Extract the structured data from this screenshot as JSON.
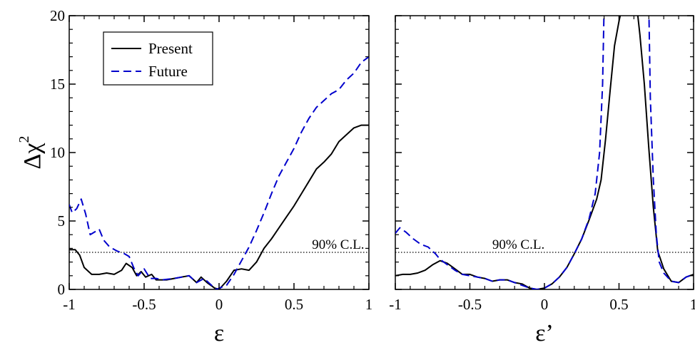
{
  "chart_data": [
    {
      "type": "line",
      "xlabel": "ε",
      "ylabel": "Δχ",
      "ylabel_superscript": "2",
      "xlim": [
        -1,
        1
      ],
      "ylim": [
        0,
        20
      ],
      "x_ticks": [
        -1,
        -0.5,
        0,
        0.5,
        1
      ],
      "x_tick_labels": [
        "-1",
        "-0.5",
        "0",
        "0.5",
        "1"
      ],
      "y_ticks": [
        0,
        5,
        10,
        15,
        20
      ],
      "y_tick_labels": [
        "0",
        "5",
        "10",
        "15",
        "20"
      ],
      "grid": false,
      "legend": {
        "position": "top-left",
        "entries": [
          "Present",
          "Future"
        ]
      },
      "reference_line": {
        "y": 2.71,
        "label": "90% C.L.",
        "label_x": 0.62
      },
      "series": [
        {
          "name": "Present",
          "color": "#000000",
          "dash": "solid",
          "points": [
            [
              -1,
              2.9
            ],
            [
              -0.96,
              2.9
            ],
            [
              -0.93,
              2.5
            ],
            [
              -0.9,
              1.6
            ],
            [
              -0.85,
              1.1
            ],
            [
              -0.8,
              1.1
            ],
            [
              -0.75,
              1.2
            ],
            [
              -0.7,
              1.1
            ],
            [
              -0.65,
              1.4
            ],
            [
              -0.62,
              1.9
            ],
            [
              -0.58,
              1.6
            ],
            [
              -0.55,
              1.0
            ],
            [
              -0.52,
              1.3
            ],
            [
              -0.49,
              0.9
            ],
            [
              -0.45,
              1.1
            ],
            [
              -0.42,
              0.7
            ],
            [
              -0.35,
              0.7
            ],
            [
              -0.3,
              0.8
            ],
            [
              -0.2,
              1.0
            ],
            [
              -0.15,
              0.5
            ],
            [
              -0.12,
              0.9
            ],
            [
              -0.08,
              0.5
            ],
            [
              -0.03,
              0.1
            ],
            [
              0,
              0.0
            ],
            [
              0.05,
              0.6
            ],
            [
              0.1,
              1.4
            ],
            [
              0.15,
              1.5
            ],
            [
              0.2,
              1.4
            ],
            [
              0.25,
              2.0
            ],
            [
              0.3,
              3.0
            ],
            [
              0.35,
              3.7
            ],
            [
              0.4,
              4.5
            ],
            [
              0.45,
              5.3
            ],
            [
              0.5,
              6.1
            ],
            [
              0.55,
              7.0
            ],
            [
              0.6,
              7.9
            ],
            [
              0.65,
              8.8
            ],
            [
              0.7,
              9.3
            ],
            [
              0.75,
              9.9
            ],
            [
              0.8,
              10.8
            ],
            [
              0.85,
              11.3
            ],
            [
              0.9,
              11.8
            ],
            [
              0.95,
              12.0
            ],
            [
              1,
              12.0
            ]
          ]
        },
        {
          "name": "Future",
          "color": "#0000cc",
          "dash": "dashed",
          "points": [
            [
              -1,
              6.2
            ],
            [
              -0.98,
              5.6
            ],
            [
              -0.95,
              5.9
            ],
            [
              -0.92,
              6.6
            ],
            [
              -0.89,
              5.5
            ],
            [
              -0.86,
              4.0
            ],
            [
              -0.83,
              4.2
            ],
            [
              -0.8,
              4.4
            ],
            [
              -0.77,
              3.6
            ],
            [
              -0.73,
              3.1
            ],
            [
              -0.68,
              2.8
            ],
            [
              -0.63,
              2.6
            ],
            [
              -0.6,
              2.4
            ],
            [
              -0.57,
              1.6
            ],
            [
              -0.54,
              1.0
            ],
            [
              -0.5,
              1.5
            ],
            [
              -0.46,
              0.8
            ],
            [
              -0.42,
              0.8
            ],
            [
              -0.38,
              0.7
            ],
            [
              -0.3,
              0.8
            ],
            [
              -0.2,
              1.0
            ],
            [
              -0.15,
              0.5
            ],
            [
              -0.1,
              0.8
            ],
            [
              -0.06,
              0.4
            ],
            [
              -0.02,
              0.0
            ],
            [
              0.05,
              0.3
            ],
            [
              0.1,
              1.1
            ],
            [
              0.15,
              2.1
            ],
            [
              0.2,
              3.1
            ],
            [
              0.25,
              4.3
            ],
            [
              0.3,
              5.6
            ],
            [
              0.35,
              7.0
            ],
            [
              0.4,
              8.3
            ],
            [
              0.45,
              9.3
            ],
            [
              0.5,
              10.3
            ],
            [
              0.55,
              11.5
            ],
            [
              0.6,
              12.5
            ],
            [
              0.65,
              13.3
            ],
            [
              0.7,
              13.8
            ],
            [
              0.75,
              14.3
            ],
            [
              0.8,
              14.6
            ],
            [
              0.85,
              15.3
            ],
            [
              0.9,
              15.8
            ],
            [
              0.95,
              16.6
            ],
            [
              1,
              17.0
            ]
          ]
        }
      ]
    },
    {
      "type": "line",
      "xlabel": "ε’",
      "xlim": [
        -1,
        1
      ],
      "ylim": [
        0,
        20
      ],
      "x_ticks": [
        -1,
        -0.5,
        0,
        0.5,
        1
      ],
      "x_tick_labels": [
        "-1",
        "-0.5",
        "0",
        "0.5",
        "1"
      ],
      "grid": false,
      "reference_line": {
        "y": 2.71,
        "label": "90% C.L.",
        "label_x": -0.35
      },
      "series": [
        {
          "name": "Present",
          "color": "#000000",
          "dash": "solid",
          "points": [
            [
              -1,
              1.0
            ],
            [
              -0.95,
              1.1
            ],
            [
              -0.9,
              1.1
            ],
            [
              -0.85,
              1.2
            ],
            [
              -0.8,
              1.4
            ],
            [
              -0.75,
              1.8
            ],
            [
              -0.7,
              2.1
            ],
            [
              -0.65,
              1.9
            ],
            [
              -0.6,
              1.5
            ],
            [
              -0.55,
              1.1
            ],
            [
              -0.5,
              1.1
            ],
            [
              -0.45,
              0.9
            ],
            [
              -0.4,
              0.8
            ],
            [
              -0.35,
              0.6
            ],
            [
              -0.3,
              0.7
            ],
            [
              -0.25,
              0.7
            ],
            [
              -0.2,
              0.5
            ],
            [
              -0.15,
              0.4
            ],
            [
              -0.1,
              0.1
            ],
            [
              -0.05,
              0.0
            ],
            [
              0,
              0.1
            ],
            [
              0.05,
              0.4
            ],
            [
              0.1,
              0.9
            ],
            [
              0.15,
              1.6
            ],
            [
              0.2,
              2.6
            ],
            [
              0.25,
              3.7
            ],
            [
              0.3,
              5.1
            ],
            [
              0.35,
              6.6
            ],
            [
              0.38,
              8.0
            ],
            [
              0.41,
              11.0
            ],
            [
              0.44,
              14.5
            ],
            [
              0.47,
              17.8
            ],
            [
              0.5,
              19.6
            ],
            [
              0.52,
              20.6
            ],
            [
              0.62,
              20.6
            ],
            [
              0.64,
              18.6
            ],
            [
              0.67,
              15.0
            ],
            [
              0.7,
              10.3
            ],
            [
              0.73,
              6.0
            ],
            [
              0.76,
              2.8
            ],
            [
              0.8,
              1.5
            ],
            [
              0.85,
              0.6
            ],
            [
              0.9,
              0.5
            ],
            [
              0.95,
              0.9
            ],
            [
              1,
              1.1
            ]
          ]
        },
        {
          "name": "Future",
          "color": "#0000cc",
          "dash": "dashed",
          "points": [
            [
              -1,
              4.1
            ],
            [
              -0.97,
              4.5
            ],
            [
              -0.93,
              4.2
            ],
            [
              -0.88,
              3.7
            ],
            [
              -0.83,
              3.3
            ],
            [
              -0.78,
              3.1
            ],
            [
              -0.73,
              2.6
            ],
            [
              -0.7,
              2.2
            ],
            [
              -0.65,
              1.8
            ],
            [
              -0.6,
              1.4
            ],
            [
              -0.55,
              1.1
            ],
            [
              -0.5,
              1.0
            ],
            [
              -0.45,
              0.9
            ],
            [
              -0.4,
              0.8
            ],
            [
              -0.35,
              0.6
            ],
            [
              -0.3,
              0.7
            ],
            [
              -0.25,
              0.7
            ],
            [
              -0.2,
              0.5
            ],
            [
              -0.15,
              0.3
            ],
            [
              -0.1,
              0.1
            ],
            [
              -0.05,
              0.0
            ],
            [
              0,
              0.1
            ],
            [
              0.05,
              0.4
            ],
            [
              0.1,
              0.9
            ],
            [
              0.15,
              1.6
            ],
            [
              0.2,
              2.6
            ],
            [
              0.25,
              3.7
            ],
            [
              0.3,
              5.2
            ],
            [
              0.34,
              7.0
            ],
            [
              0.37,
              10.0
            ],
            [
              0.39,
              15.0
            ],
            [
              0.4,
              20.6
            ],
            null,
            [
              0.7,
              20.6
            ],
            [
              0.71,
              14.0
            ],
            [
              0.73,
              8.0
            ],
            [
              0.75,
              4.0
            ],
            [
              0.77,
              2.0
            ],
            [
              0.8,
              1.2
            ],
            [
              0.85,
              0.6
            ],
            [
              0.9,
              0.5
            ],
            [
              0.95,
              0.9
            ],
            [
              1,
              1.1
            ]
          ]
        }
      ]
    }
  ]
}
